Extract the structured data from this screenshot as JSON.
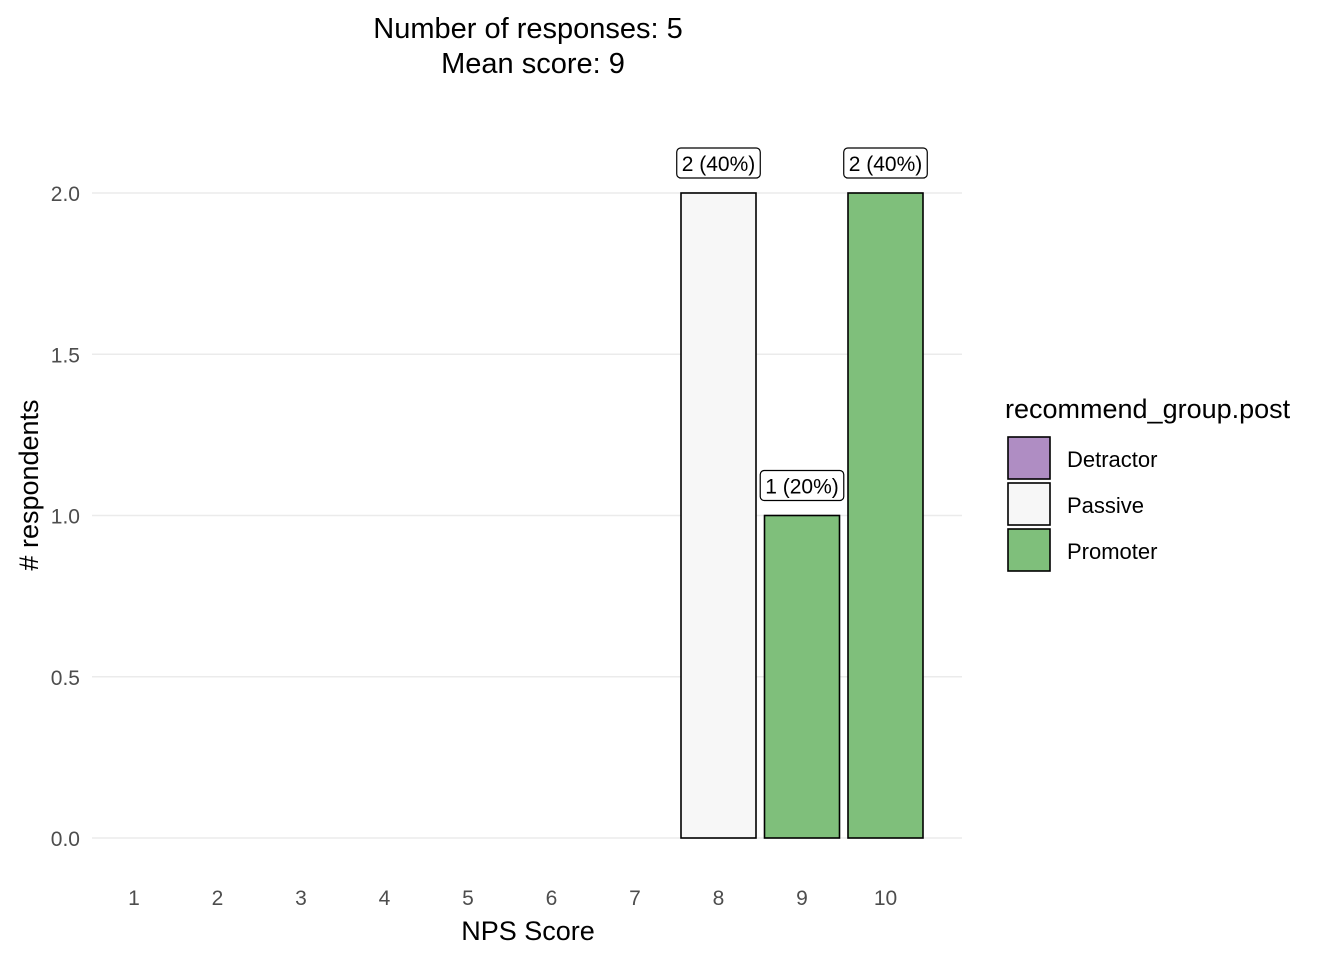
{
  "chart_data": {
    "type": "bar",
    "title_lines": [
      "Number of responses: 5",
      "Mean score: 9"
    ],
    "xlabel": "NPS Score",
    "ylabel": "# respondents",
    "categories": [
      "1",
      "2",
      "3",
      "4",
      "5",
      "6",
      "7",
      "8",
      "9",
      "10"
    ],
    "values": [
      0,
      0,
      0,
      0,
      0,
      0,
      0,
      2,
      1,
      2
    ],
    "groups": [
      "",
      "",
      "",
      "",
      "",
      "",
      "",
      "Passive",
      "Promoter",
      "Promoter"
    ],
    "bar_labels": [
      "",
      "",
      "",
      "",
      "",
      "",
      "",
      "2 (40%)",
      "1 (20%)",
      "2 (40%)"
    ],
    "ylim": [
      0,
      2
    ],
    "yticks": [
      0.0,
      0.5,
      1.0,
      1.5,
      2.0
    ],
    "ytick_labels": [
      "0.0",
      "0.5",
      "1.0",
      "1.5",
      "2.0"
    ],
    "grid": true,
    "legend": {
      "title": "recommend_group.post",
      "position": "right",
      "entries": [
        {
          "name": "Detractor",
          "color": "#af8dc3"
        },
        {
          "name": "Passive",
          "color": "#f7f7f7"
        },
        {
          "name": "Promoter",
          "color": "#7fbf7b"
        }
      ]
    }
  }
}
